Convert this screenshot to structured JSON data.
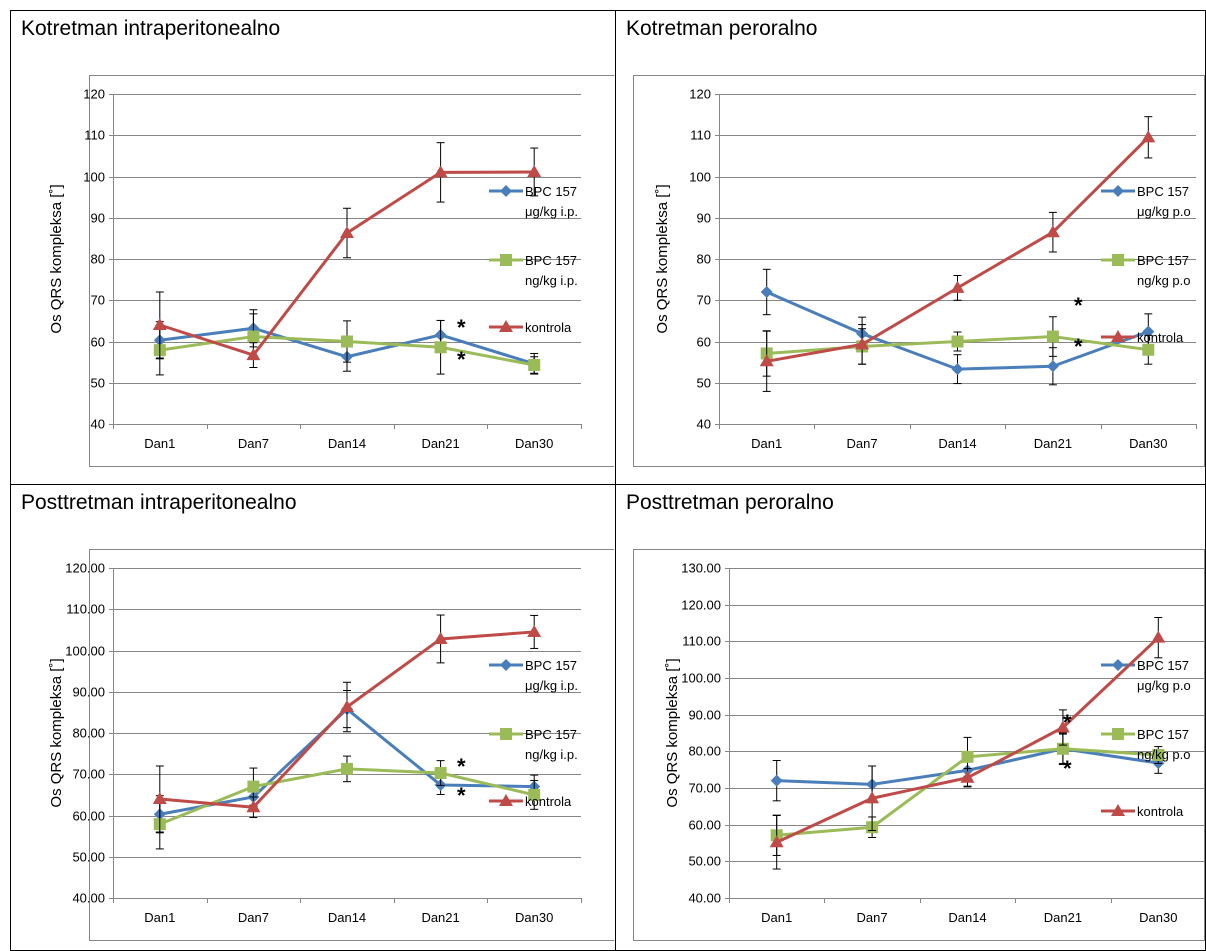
{
  "panels": [
    {
      "title": "Kotretman intraperitonealno"
    },
    {
      "title": "Kotretman peroralno"
    },
    {
      "title": "Posttretman intraperitonealno"
    },
    {
      "title": "Posttretman peroralno"
    }
  ],
  "colors": {
    "series1": "#4a7ebb",
    "series2": "#9bbb59",
    "series3": "#be4b48"
  },
  "chart_data": [
    {
      "type": "line",
      "title": "Kotretman intraperitonealno",
      "ylabel": "Os QRS kompleksa [˚]",
      "categories": [
        "Dan1",
        "Dan7",
        "Dan14",
        "Dan21",
        "Dan30"
      ],
      "ylim": [
        40,
        120
      ],
      "yticks": [
        "40",
        "50",
        "60",
        "70",
        "80",
        "90",
        "100",
        "110",
        "120"
      ],
      "legend_position": "right",
      "series": [
        {
          "name": [
            "BPC 157",
            "μg/kg i.p."
          ],
          "marker": "diamond",
          "values": [
            60.3,
            63.2,
            56.3,
            61.6,
            54.6
          ],
          "errors": [
            4.5,
            4.5,
            3.5,
            3.5,
            2.5
          ]
        },
        {
          "name": [
            "BPC 157",
            "ng/kg i.p."
          ],
          "marker": "square",
          "values": [
            57.9,
            61.2,
            60.0,
            58.6,
            54.3
          ],
          "errors": [
            6,
            5.5,
            5,
            6.5,
            2
          ]
        },
        {
          "name": [
            "kontrola"
          ],
          "marker": "triangle",
          "values": [
            64.0,
            56.7,
            86.3,
            101.0,
            101.1
          ],
          "errors": [
            8,
            3,
            6,
            7.2,
            5.8
          ]
        }
      ],
      "annotations": [
        "*",
        "*"
      ]
    },
    {
      "type": "line",
      "title": "Kotretman peroralno",
      "ylabel": "Os QRS kompleksa [˚]",
      "categories": [
        "Dan1",
        "Dan7",
        "Dan14",
        "Dan21",
        "Dan30"
      ],
      "ylim": [
        40,
        120
      ],
      "yticks": [
        "40",
        "50",
        "60",
        "70",
        "80",
        "90",
        "100",
        "110",
        "120"
      ],
      "legend_position": "right",
      "series": [
        {
          "name": [
            "BPC 157",
            "μg/kg p.o"
          ],
          "marker": "diamond",
          "values": [
            72.0,
            61.9,
            53.3,
            54.0,
            62.4
          ],
          "errors": [
            5.5,
            4,
            3.5,
            4.5,
            4.3
          ]
        },
        {
          "name": [
            "BPC 157",
            "ng/kg p.o"
          ],
          "marker": "square",
          "values": [
            57.1,
            58.8,
            60.0,
            61.2,
            58.0
          ],
          "errors": [
            5.5,
            4.3,
            2.3,
            4.8,
            3.5
          ]
        },
        {
          "name": [
            "kontrola"
          ],
          "marker": "triangle",
          "values": [
            55.2,
            59.3,
            73.0,
            86.5,
            109.5
          ],
          "errors": [
            7.3,
            4.8,
            3,
            4.8,
            5
          ]
        }
      ],
      "annotations": [
        "*",
        "*"
      ]
    },
    {
      "type": "line",
      "title": "Posttretman intraperitonealno",
      "ylabel": "Os QRS kompleksa [˚]",
      "categories": [
        "Dan1",
        "Dan7",
        "Dan14",
        "Dan21",
        "Dan30"
      ],
      "ylim": [
        40,
        120
      ],
      "yticks": [
        "40.00",
        "50.00",
        "60.00",
        "70.00",
        "80.00",
        "90.00",
        "100.00",
        "110.00",
        "120.00"
      ],
      "legend_position": "right",
      "series": [
        {
          "name": [
            "BPC 157",
            "μg/kg i.p."
          ],
          "marker": "diamond",
          "values": [
            60.3,
            64.5,
            85.8,
            67.4,
            67.0
          ],
          "errors": [
            4.5,
            2.3,
            4.5,
            2.3,
            2.8
          ]
        },
        {
          "name": [
            "BPC 157",
            "ng/kg i.p."
          ],
          "marker": "square",
          "values": [
            57.9,
            67.0,
            71.3,
            70.3,
            65.0
          ],
          "errors": [
            6,
            4.5,
            3.1,
            3,
            3.5
          ]
        },
        {
          "name": [
            "kontrola"
          ],
          "marker": "triangle",
          "values": [
            64.0,
            62.0,
            86.3,
            102.8,
            104.5
          ],
          "errors": [
            8,
            2.5,
            6,
            5.8,
            4
          ]
        }
      ],
      "annotations": [
        "*",
        "*"
      ]
    },
    {
      "type": "line",
      "title": "Posttretman peroralno",
      "ylabel": "Os QRS kompleksa [˚]",
      "categories": [
        "Dan1",
        "Dan7",
        "Dan14",
        "Dan21",
        "Dan30"
      ],
      "ylim": [
        40,
        130
      ],
      "yticks": [
        "40.00",
        "50.00",
        "60.00",
        "70.00",
        "80.00",
        "90.00",
        "100.00",
        "110.00",
        "120.00",
        "130.00"
      ],
      "legend_position": "right",
      "series": [
        {
          "name": [
            "BPC 157",
            "μg/kg p.o"
          ],
          "marker": "diamond",
          "values": [
            72.0,
            71.0,
            74.8,
            80.7,
            76.8
          ],
          "errors": [
            5.5,
            5,
            4.3,
            4.3,
            2.8
          ]
        },
        {
          "name": [
            "BPC 157",
            "ng/kg p.o"
          ],
          "marker": "square",
          "values": [
            57.1,
            59.3,
            78.5,
            80.7,
            79.0
          ],
          "errors": [
            5.5,
            2.8,
            5.3,
            4,
            2.3
          ]
        },
        {
          "name": [
            "kontrola"
          ],
          "marker": "triangle",
          "values": [
            55.2,
            67.2,
            72.8,
            86.5,
            111.0
          ],
          "errors": [
            7.3,
            8.8,
            2.5,
            4.8,
            5.5
          ]
        }
      ],
      "annotations": [
        "*",
        "*"
      ]
    }
  ]
}
